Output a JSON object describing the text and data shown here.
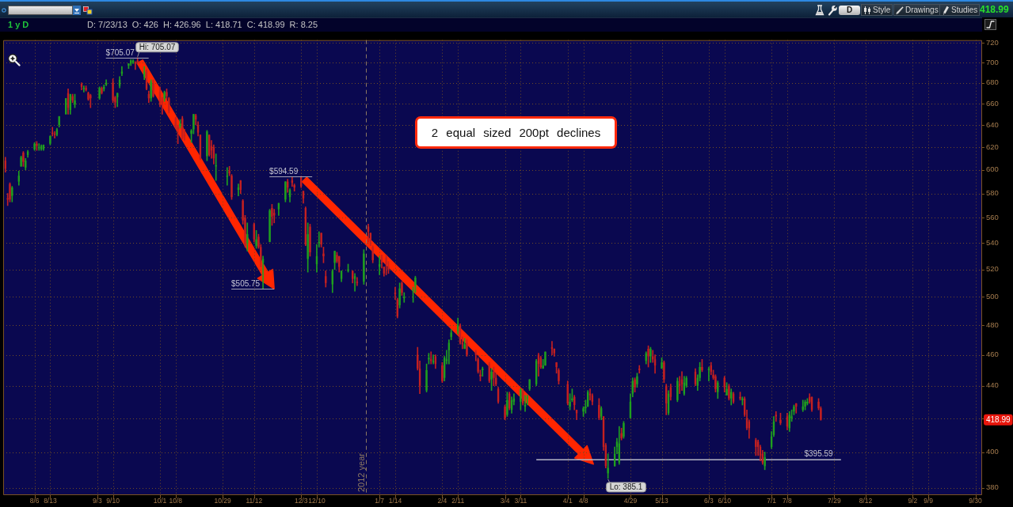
{
  "chart_data": {
    "type": "candlestick",
    "title": "1 y D",
    "subtitle": "D: 7/23/13  O: 426  H: 426.96  L: 418.71  C: 418.99  R: 8.25",
    "x": [
      "2012-07-24",
      "2012-07-25",
      "2012-07-26",
      "2012-07-27",
      "2012-07-30",
      "2012-07-31",
      "2012-08-01",
      "2012-08-02",
      "2012-08-03",
      "2012-08-06",
      "2012-08-07",
      "2012-08-08",
      "2012-08-09",
      "2012-08-10",
      "2012-08-13",
      "2012-08-14",
      "2012-08-15",
      "2012-08-16",
      "2012-08-17",
      "2012-08-20",
      "2012-08-21",
      "2012-08-22",
      "2012-08-23",
      "2012-08-24",
      "2012-08-27",
      "2012-08-28",
      "2012-08-29",
      "2012-08-30",
      "2012-08-31",
      "2012-09-04",
      "2012-09-05",
      "2012-09-06",
      "2012-09-07",
      "2012-09-10",
      "2012-09-11",
      "2012-09-12",
      "2012-09-13",
      "2012-09-14",
      "2012-09-17",
      "2012-09-18",
      "2012-09-19",
      "2012-09-20",
      "2012-09-21",
      "2012-09-24",
      "2012-09-25",
      "2012-09-26",
      "2012-09-27",
      "2012-09-28",
      "2012-10-01",
      "2012-10-02",
      "2012-10-03",
      "2012-10-04",
      "2012-10-05",
      "2012-10-08",
      "2012-10-09",
      "2012-10-10",
      "2012-10-11",
      "2012-10-12",
      "2012-10-15",
      "2012-10-16",
      "2012-10-17",
      "2012-10-18",
      "2012-10-19",
      "2012-10-22",
      "2012-10-23",
      "2012-10-24",
      "2012-10-25",
      "2012-10-26",
      "2012-10-31",
      "2012-11-01",
      "2012-11-02",
      "2012-11-05",
      "2012-11-06",
      "2012-11-07",
      "2012-11-08",
      "2012-11-09",
      "2012-11-12",
      "2012-11-13",
      "2012-11-14",
      "2012-11-15",
      "2012-11-16",
      "2012-11-19",
      "2012-11-20",
      "2012-11-21",
      "2012-11-23",
      "2012-11-26",
      "2012-11-27",
      "2012-11-28",
      "2012-11-29",
      "2012-11-30",
      "2012-12-03",
      "2012-12-04",
      "2012-12-05",
      "2012-12-06",
      "2012-12-07",
      "2012-12-10",
      "2012-12-11",
      "2012-12-12",
      "2012-12-13",
      "2012-12-14",
      "2012-12-17",
      "2012-12-18",
      "2012-12-19",
      "2012-12-20",
      "2012-12-21",
      "2012-12-24",
      "2012-12-26",
      "2012-12-27",
      "2012-12-28",
      "2012-12-31",
      "2013-01-02",
      "2013-01-03",
      "2013-01-04",
      "2013-01-07",
      "2013-01-08",
      "2013-01-09",
      "2013-01-10",
      "2013-01-11",
      "2013-01-14",
      "2013-01-15",
      "2013-01-16",
      "2013-01-17",
      "2013-01-18",
      "2013-01-22",
      "2013-01-23",
      "2013-01-24",
      "2013-01-25",
      "2013-01-28",
      "2013-01-29",
      "2013-01-30",
      "2013-01-31",
      "2013-02-01",
      "2013-02-04",
      "2013-02-05",
      "2013-02-06",
      "2013-02-07",
      "2013-02-08",
      "2013-02-11",
      "2013-02-12",
      "2013-02-13",
      "2013-02-14",
      "2013-02-15",
      "2013-02-19",
      "2013-02-20",
      "2013-02-21",
      "2013-02-22",
      "2013-02-25",
      "2013-02-26",
      "2013-02-27",
      "2013-02-28",
      "2013-03-01",
      "2013-03-04",
      "2013-03-05",
      "2013-03-06",
      "2013-03-07",
      "2013-03-08",
      "2013-03-11",
      "2013-03-12",
      "2013-03-13",
      "2013-03-14",
      "2013-03-15",
      "2013-03-18",
      "2013-03-19",
      "2013-03-20",
      "2013-03-21",
      "2013-03-22",
      "2013-03-25",
      "2013-03-26",
      "2013-03-27",
      "2013-03-28",
      "2013-04-01",
      "2013-04-02",
      "2013-04-03",
      "2013-04-04",
      "2013-04-05",
      "2013-04-08",
      "2013-04-09",
      "2013-04-10",
      "2013-04-11",
      "2013-04-12",
      "2013-04-15",
      "2013-04-16",
      "2013-04-17",
      "2013-04-18",
      "2013-04-19",
      "2013-04-22",
      "2013-04-23",
      "2013-04-24",
      "2013-04-25",
      "2013-04-26",
      "2013-04-29",
      "2013-04-30",
      "2013-05-01",
      "2013-05-02",
      "2013-05-03",
      "2013-05-06",
      "2013-05-07",
      "2013-05-08",
      "2013-05-09",
      "2013-05-10",
      "2013-05-13",
      "2013-05-14",
      "2013-05-15",
      "2013-05-16",
      "2013-05-17",
      "2013-05-20",
      "2013-05-21",
      "2013-05-22",
      "2013-05-23",
      "2013-05-24",
      "2013-05-28",
      "2013-05-29",
      "2013-05-30",
      "2013-05-31",
      "2013-06-03",
      "2013-06-04",
      "2013-06-05",
      "2013-06-06",
      "2013-06-07",
      "2013-06-10",
      "2013-06-11",
      "2013-06-12",
      "2013-06-13",
      "2013-06-14",
      "2013-06-17",
      "2013-06-18",
      "2013-06-19",
      "2013-06-20",
      "2013-06-21",
      "2013-06-24",
      "2013-06-25",
      "2013-06-26",
      "2013-06-27",
      "2013-06-28",
      "2013-07-01",
      "2013-07-02",
      "2013-07-03",
      "2013-07-05",
      "2013-07-08",
      "2013-07-09",
      "2013-07-10",
      "2013-07-11",
      "2013-07-12",
      "2013-07-15",
      "2013-07-16",
      "2013-07-17",
      "2013-07-18",
      "2013-07-19",
      "2013-07-22",
      "2013-07-23"
    ],
    "ohlc": [
      [
        608,
        611,
        598,
        601
      ],
      [
        576,
        580,
        570,
        575
      ],
      [
        588,
        589,
        573,
        575
      ],
      [
        578,
        586,
        573,
        585
      ],
      [
        590,
        599,
        587,
        595
      ],
      [
        603,
        612,
        603,
        611
      ],
      [
        615,
        616,
        603,
        607
      ],
      [
        602,
        610,
        600,
        608
      ],
      [
        613,
        617,
        611,
        616
      ],
      [
        618,
        624,
        617,
        623
      ],
      [
        623,
        625,
        617,
        621
      ],
      [
        619,
        623,
        617,
        620
      ],
      [
        618,
        622,
        617,
        621
      ],
      [
        618,
        622,
        617,
        622
      ],
      [
        623,
        630,
        622,
        630
      ],
      [
        633,
        638,
        630,
        632
      ],
      [
        632,
        634,
        628,
        631
      ],
      [
        631,
        637,
        630,
        636
      ],
      [
        640,
        648,
        638,
        648
      ],
      [
        650,
        665,
        650,
        665
      ],
      [
        670,
        674,
        650,
        656
      ],
      [
        654,
        669,
        650,
        669
      ],
      [
        667,
        669,
        661,
        663
      ],
      [
        659,
        669,
        656,
        663
      ],
      [
        679,
        680,
        673,
        676
      ],
      [
        674,
        677,
        671,
        675
      ],
      [
        675,
        677,
        672,
        673
      ],
      [
        670,
        671,
        663,
        664
      ],
      [
        668,
        669,
        656,
        665
      ],
      [
        665,
        676,
        664,
        675
      ],
      [
        675,
        676,
        669,
        670
      ],
      [
        674,
        678,
        672,
        676
      ],
      [
        678,
        683,
        677,
        680
      ],
      [
        680,
        684,
        661,
        663
      ],
      [
        666,
        667,
        656,
        661
      ],
      [
        666,
        670,
        657,
        670
      ],
      [
        677,
        686,
        675,
        683
      ],
      [
        689,
        696,
        687,
        691
      ],
      [
        697,
        699,
        694,
        699
      ],
      [
        699,
        703,
        697,
        702
      ],
      [
        700,
        703,
        699,
        702
      ],
      [
        700,
        701,
        693,
        699
      ],
      [
        702,
        705.07,
        699,
        700
      ],
      [
        686,
        696,
        683,
        691
      ],
      [
        692,
        693,
        673,
        674
      ],
      [
        669,
        672,
        661,
        665
      ],
      [
        665,
        683,
        662,
        681
      ],
      [
        679,
        683,
        666,
        667
      ],
      [
        671,
        676,
        657,
        659
      ],
      [
        662,
        666,
        650,
        661
      ],
      [
        665,
        672,
        662,
        671
      ],
      [
        671,
        674,
        664,
        667
      ],
      [
        665,
        666,
        651,
        653
      ],
      [
        646,
        647,
        637,
        638
      ],
      [
        638,
        640,
        623,
        636
      ],
      [
        639,
        645,
        637,
        641
      ],
      [
        646,
        648,
        627,
        628
      ],
      [
        631,
        636,
        626,
        630
      ],
      [
        632,
        636,
        624,
        635
      ],
      [
        636,
        650,
        632,
        650
      ],
      [
        649,
        650,
        640,
        645
      ],
      [
        640,
        643,
        630,
        633
      ],
      [
        631,
        631,
        609,
        610
      ],
      [
        612,
        635,
        608,
        634
      ],
      [
        631,
        631,
        612,
        613
      ],
      [
        621,
        626,
        610,
        617
      ],
      [
        620,
        622,
        605,
        610
      ],
      [
        603,
        614,
        591,
        604
      ],
      [
        594,
        602,
        587,
        595
      ],
      [
        599,
        603,
        595,
        597
      ],
      [
        595,
        596,
        575,
        577
      ],
      [
        583,
        588,
        578,
        585
      ],
      [
        591,
        591,
        580,
        583
      ],
      [
        574,
        575,
        555,
        558
      ],
      [
        560,
        562,
        537,
        538
      ],
      [
        540,
        556,
        534,
        547
      ],
      [
        555,
        556,
        541,
        543
      ],
      [
        538,
        550,
        536,
        543
      ],
      [
        545,
        547,
        536,
        537
      ],
      [
        537,
        539,
        522,
        526
      ],
      [
        525,
        530,
        505.75,
        528
      ],
      [
        541,
        567,
        541,
        566
      ],
      [
        568,
        571,
        554,
        561
      ],
      [
        564,
        567,
        556,
        562
      ],
      [
        567,
        572,
        562,
        572
      ],
      [
        575,
        590,
        573,
        590
      ],
      [
        590,
        592,
        581,
        585
      ],
      [
        577,
        584,
        573,
        583
      ],
      [
        591,
        594,
        586,
        589
      ],
      [
        587,
        588,
        582,
        585
      ],
      [
        594,
        594.59,
        585,
        586
      ],
      [
        582,
        582,
        572,
        576
      ],
      [
        568,
        569,
        538,
        539
      ],
      [
        528,
        556,
        518,
        547
      ],
      [
        553,
        555,
        530,
        533
      ],
      [
        524,
        539,
        518,
        530
      ],
      [
        540,
        549,
        537,
        541
      ],
      [
        548,
        548,
        537,
        539
      ],
      [
        532,
        537,
        525,
        530
      ],
      [
        515,
        519,
        507,
        510
      ],
      [
        509,
        520,
        503,
        519
      ],
      [
        525,
        534,
        520,
        534
      ],
      [
        531,
        533,
        525,
        526
      ],
      [
        530,
        530,
        518,
        522
      ],
      [
        513,
        519,
        511,
        519
      ],
      [
        519,
        524,
        518,
        520
      ],
      [
        519,
        519,
        510,
        513
      ],
      [
        513,
        517,
        504,
        515
      ],
      [
        511,
        514,
        508,
        510
      ],
      [
        511,
        535,
        509,
        532
      ],
      [
        553,
        555,
        541,
        549
      ],
      [
        548,
        548,
        538,
        542
      ],
      [
        537,
        538,
        525,
        527
      ],
      [
        522,
        530,
        516,
        524
      ],
      [
        529,
        531,
        521,
        525
      ],
      [
        522,
        522,
        515,
        517
      ],
      [
        529,
        531,
        516,
        524
      ],
      [
        522,
        526,
        517,
        520
      ],
      [
        503,
        507,
        498,
        502
      ],
      [
        498,
        499,
        485,
        486
      ],
      [
        494,
        510,
        492,
        506
      ],
      [
        510,
        511,
        501,
        503
      ],
      [
        499,
        503,
        496,
        500
      ],
      [
        504,
        507,
        496,
        505
      ],
      [
        508,
        515,
        503,
        514
      ],
      [
        460,
        465,
        450,
        451
      ],
      [
        451,
        456,
        435,
        440
      ],
      [
        437,
        454,
        436,
        450
      ],
      [
        457,
        461,
        454,
        458
      ],
      [
        457,
        462,
        454,
        456
      ],
      [
        455,
        460,
        454,
        456
      ],
      [
        459,
        460,
        451,
        454
      ],
      [
        453,
        455,
        442,
        443
      ],
      [
        445,
        459,
        443,
        458
      ],
      [
        456,
        463,
        454,
        457
      ],
      [
        463,
        470,
        454,
        468
      ],
      [
        472,
        477,
        470,
        475
      ],
      [
        476,
        485,
        474,
        480
      ],
      [
        480,
        481,
        467,
        468
      ],
      [
        468,
        472,
        464,
        467
      ],
      [
        464,
        471,
        464,
        467
      ],
      [
        468,
        470,
        459,
        460
      ],
      [
        462,
        463,
        456,
        460
      ],
      [
        457,
        458,
        448,
        449
      ],
      [
        447,
        450,
        443,
        446
      ],
      [
        450,
        452,
        446,
        451
      ],
      [
        454,
        455,
        442,
        443
      ],
      [
        444,
        451,
        437,
        449
      ],
      [
        449,
        452,
        440,
        445
      ],
      [
        445,
        448,
        440,
        441
      ],
      [
        438,
        439,
        429,
        430
      ],
      [
        427,
        428,
        419,
        420
      ],
      [
        422,
        436,
        421,
        431
      ],
      [
        435,
        436,
        425,
        426
      ],
      [
        425,
        433,
        423,
        431
      ],
      [
        430,
        435,
        428,
        432
      ],
      [
        430,
        438,
        425,
        438
      ],
      [
        436,
        438,
        428,
        429
      ],
      [
        427,
        434,
        424,
        428
      ],
      [
        432,
        434,
        428,
        433
      ],
      [
        438,
        444,
        437,
        444
      ],
      [
        441,
        457,
        440,
        456
      ],
      [
        460,
        461,
        446,
        454
      ],
      [
        458,
        459,
        451,
        452
      ],
      [
        451,
        457,
        451,
        453
      ],
      [
        453,
        462,
        453,
        462
      ],
      [
        465,
        469,
        460,
        464
      ],
      [
        464,
        464,
        459,
        461
      ],
      [
        455,
        455,
        448,
        452
      ],
      [
        450,
        451,
        441,
        443
      ],
      [
        441,
        443,
        428,
        429
      ],
      [
        427,
        435,
        425,
        430
      ],
      [
        431,
        438,
        430,
        432
      ],
      [
        433,
        434,
        425,
        428
      ],
      [
        425,
        425,
        419,
        423
      ],
      [
        424,
        427,
        421,
        426
      ],
      [
        426,
        431,
        423,
        427
      ],
      [
        427,
        437,
        427,
        436
      ],
      [
        435,
        438,
        431,
        434
      ],
      [
        434,
        435,
        428,
        430
      ],
      [
        428,
        432,
        419,
        420
      ],
      [
        421,
        427,
        419,
        426
      ],
      [
        421,
        421,
        401,
        403
      ],
      [
        404,
        405,
        391,
        392
      ],
      [
        388,
        399,
        385.1,
        391
      ],
      [
        392,
        403,
        392,
        399
      ],
      [
        403,
        408,
        399,
        406
      ],
      [
        394,
        415,
        393,
        405
      ],
      [
        411,
        414,
        407,
        408
      ],
      [
        409,
        418,
        408,
        417
      ],
      [
        420,
        435,
        420,
        430
      ],
      [
        435,
        445,
        433,
        443
      ],
      [
        444,
        445,
        436,
        439
      ],
      [
        441,
        448,
        439,
        446
      ],
      [
        451,
        453,
        448,
        450
      ],
      [
        456,
        462,
        454,
        461
      ],
      [
        464,
        466,
        452,
        459
      ],
      [
        459,
        465,
        455,
        464
      ],
      [
        459,
        463,
        455,
        457
      ],
      [
        457,
        460,
        448,
        453
      ],
      [
        451,
        458,
        451,
        455
      ],
      [
        455,
        456,
        442,
        444
      ],
      [
        440,
        441,
        422,
        429
      ],
      [
        423,
        437,
        422,
        435
      ],
      [
        439,
        441,
        431,
        433
      ],
      [
        431,
        445,
        430,
        443
      ],
      [
        441,
        446,
        435,
        440
      ],
      [
        444,
        449,
        437,
        441
      ],
      [
        435,
        446,
        434,
        442
      ],
      [
        440,
        446,
        439,
        445
      ],
      [
        449,
        451,
        440,
        441
      ],
      [
        440,
        447,
        437,
        445
      ],
      [
        445,
        455,
        443,
        452
      ],
      [
        452,
        457,
        449,
        450
      ],
      [
        450,
        452,
        443,
        451
      ],
      [
        453,
        455,
        447,
        449
      ],
      [
        447,
        450,
        444,
        445
      ],
      [
        446,
        447,
        436,
        438
      ],
      [
        436,
        443,
        432,
        442
      ],
      [
        445,
        446,
        436,
        439
      ],
      [
        434,
        442,
        434,
        438
      ],
      [
        440,
        441,
        431,
        432
      ],
      [
        432,
        438,
        428,
        436
      ],
      [
        435,
        436,
        429,
        430
      ],
      [
        433,
        436,
        431,
        432
      ],
      [
        431,
        433,
        428,
        432
      ],
      [
        432,
        433,
        421,
        422
      ],
      [
        420,
        425,
        413,
        414
      ],
      [
        418,
        419,
        408,
        414
      ],
      [
        407,
        408,
        398,
        403
      ],
      [
        406,
        407,
        398,
        403
      ],
      [
        403,
        404,
        395,
        398
      ],
      [
        399,
        401,
        393,
        394
      ],
      [
        392,
        400,
        390,
        397
      ],
      [
        403,
        412,
        402,
        409
      ],
      [
        410,
        421,
        409,
        418
      ],
      [
        422,
        424,
        418,
        421
      ],
      [
        419,
        423,
        416,
        417
      ],
      [
        421,
        423,
        413,
        415
      ],
      [
        414,
        424,
        412,
        422
      ],
      [
        420,
        425,
        418,
        421
      ],
      [
        424,
        428,
        422,
        427
      ],
      [
        429,
        429,
        423,
        427
      ],
      [
        425,
        431,
        424,
        427
      ],
      [
        427,
        431,
        425,
        430
      ],
      [
        429,
        432,
        428,
        430
      ],
      [
        433,
        435,
        429,
        430
      ],
      [
        433,
        433,
        424,
        425
      ],
      [
        430,
        432,
        425,
        426
      ],
      [
        426,
        426.96,
        418.71,
        418.99
      ]
    ],
    "colors": [
      "#c42020",
      "#c42020",
      "#c42020",
      "#1f9f1f",
      "#1f9f1f",
      "#1f9f1f",
      "#c42020",
      "#1f9f1f",
      "#1f9f1f",
      "#1f9f1f",
      "#c42020",
      "#1f9f1f",
      "#1f9f1f",
      "#1f9f1f",
      "#1f9f1f",
      "#c42020",
      "#c42020",
      "#1f9f1f",
      "#1f9f1f",
      "#1f9f1f",
      "#c42020",
      "#1f9f1f",
      "#c42020",
      "#1f9f1f",
      "#c42020",
      "#1f9f1f",
      "#c42020",
      "#c42020",
      "#c42020",
      "#1f9f1f",
      "#c42020",
      "#1f9f1f",
      "#1f9f1f",
      "#c42020",
      "#c42020",
      "#1f9f1f",
      "#1f9f1f",
      "#1f9f1f",
      "#1f9f1f",
      "#1f9f1f",
      "#1f9f1f",
      "#c42020",
      "#c42020",
      "#1f9f1f",
      "#c42020",
      "#c42020",
      "#1f9f1f",
      "#c42020",
      "#c42020",
      "#c42020",
      "#1f9f1f",
      "#c42020",
      "#c42020",
      "#c42020",
      "#c42020",
      "#1f9f1f",
      "#c42020",
      "#c42020",
      "#1f9f1f",
      "#1f9f1f",
      "#c42020",
      "#c42020",
      "#c42020",
      "#1f9f1f",
      "#c42020",
      "#c42020",
      "#c42020",
      "#1f9f1f",
      "#1f9f1f",
      "#c42020",
      "#c42020",
      "#1f9f1f",
      "#c42020",
      "#c42020",
      "#c42020",
      "#1f9f1f",
      "#c42020",
      "#1f9f1f",
      "#c42020",
      "#c42020",
      "#1f9f1f",
      "#1f9f1f",
      "#c42020",
      "#c42020",
      "#1f9f1f",
      "#1f9f1f",
      "#c42020",
      "#1f9f1f",
      "#c42020",
      "#c42020",
      "#c42020",
      "#c42020",
      "#c42020",
      "#1f9f1f",
      "#c42020",
      "#1f9f1f",
      "#1f9f1f",
      "#c42020",
      "#c42020",
      "#c42020",
      "#1f9f1f",
      "#1f9f1f",
      "#c42020",
      "#c42020",
      "#1f9f1f",
      "#1f9f1f",
      "#c42020",
      "#1f9f1f",
      "#c42020",
      "#1f9f1f",
      "#c42020",
      "#c42020",
      "#c42020",
      "#1f9f1f",
      "#c42020",
      "#c42020",
      "#c42020",
      "#c42020",
      "#c42020",
      "#c42020",
      "#1f9f1f",
      "#c42020",
      "#1f9f1f",
      "#1f9f1f",
      "#1f9f1f",
      "#c42020",
      "#c42020",
      "#1f9f1f",
      "#1f9f1f",
      "#c42020",
      "#1f9f1f",
      "#c42020",
      "#c42020",
      "#1f9f1f",
      "#1f9f1f",
      "#1f9f1f",
      "#1f9f1f",
      "#1f9f1f",
      "#c42020",
      "#c42020",
      "#1f9f1f",
      "#c42020",
      "#c42020",
      "#c42020",
      "#c42020",
      "#1f9f1f",
      "#c42020",
      "#1f9f1f",
      "#c42020",
      "#c42020",
      "#c42020",
      "#c42020",
      "#1f9f1f",
      "#c42020",
      "#1f9f1f",
      "#1f9f1f",
      "#1f9f1f",
      "#c42020",
      "#1f9f1f",
      "#1f9f1f",
      "#1f9f1f",
      "#1f9f1f",
      "#c42020",
      "#c42020",
      "#1f9f1f",
      "#1f9f1f",
      "#c42020",
      "#c42020",
      "#c42020",
      "#c42020",
      "#c42020",
      "#1f9f1f",
      "#1f9f1f",
      "#c42020",
      "#c42020",
      "#1f9f1f",
      "#1f9f1f",
      "#1f9f1f",
      "#c42020",
      "#c42020",
      "#c42020",
      "#1f9f1f",
      "#c42020",
      "#c42020",
      "#1f9f1f",
      "#1f9f1f",
      "#1f9f1f",
      "#1f9f1f",
      "#c42020",
      "#1f9f1f",
      "#1f9f1f",
      "#1f9f1f",
      "#c42020",
      "#1f9f1f",
      "#c42020",
      "#1f9f1f",
      "#c42020",
      "#1f9f1f",
      "#c42020",
      "#c42020",
      "#1f9f1f",
      "#c42020",
      "#c42020",
      "#1f9f1f",
      "#c42020",
      "#1f9f1f",
      "#c42020",
      "#c42020",
      "#1f9f1f",
      "#1f9f1f",
      "#c42020",
      "#1f9f1f",
      "#1f9f1f",
      "#c42020",
      "#1f9f1f",
      "#c42020",
      "#c42020",
      "#c42020",
      "#1f9f1f",
      "#c42020",
      "#1f9f1f",
      "#c42020",
      "#1f9f1f",
      "#c42020",
      "#c42020",
      "#1f9f1f",
      "#c42020",
      "#c42020",
      "#c42020",
      "#c42020",
      "#c42020",
      "#c42020",
      "#c42020",
      "#1f9f1f",
      "#1f9f1f",
      "#1f9f1f",
      "#c42020",
      "#c42020",
      "#c42020",
      "#1f9f1f",
      "#1f9f1f",
      "#1f9f1f",
      "#c42020",
      "#1f9f1f",
      "#1f9f1f",
      "#1f9f1f",
      "#c42020",
      "#c42020",
      "#c42020",
      "#c42020"
    ],
    "series": [
      {
        "type": "line",
        "x": [
          "2013-03-18",
          "2013-08-01"
        ],
        "values": [
          395.59,
          395.59
        ],
        "color": "#b4b4c4"
      }
    ],
    "xlim": [
      "2012-07-23",
      "2013-10-03"
    ],
    "xticks": [
      {
        "value": "2012-08-06",
        "label": "8/6"
      },
      {
        "value": "2012-08-13",
        "label": "8/13"
      },
      {
        "value": "2012-09-03",
        "label": "9/3"
      },
      {
        "value": "2012-09-10",
        "label": "9/10"
      },
      {
        "value": "2012-10-01",
        "label": "10/1"
      },
      {
        "value": "2012-10-08",
        "label": "10/8"
      },
      {
        "value": "2012-10-29",
        "label": "10/29"
      },
      {
        "value": "2012-11-12",
        "label": "11/12"
      },
      {
        "value": "2012-12-03",
        "label": "12/3"
      },
      {
        "value": "2012-12-10",
        "label": "12/10"
      },
      {
        "value": "2013-01-07",
        "label": "1/7"
      },
      {
        "value": "2013-01-14",
        "label": "1/14"
      },
      {
        "value": "2013-02-04",
        "label": "2/4"
      },
      {
        "value": "2013-02-11",
        "label": "2/11"
      },
      {
        "value": "2013-03-04",
        "label": "3/4"
      },
      {
        "value": "2013-03-11",
        "label": "3/11"
      },
      {
        "value": "2013-04-01",
        "label": "4/1"
      },
      {
        "value": "2013-04-08",
        "label": "4/8"
      },
      {
        "value": "2013-04-29",
        "label": "4/29"
      },
      {
        "value": "2013-05-13",
        "label": "5/13"
      },
      {
        "value": "2013-06-03",
        "label": "6/3"
      },
      {
        "value": "2013-06-10",
        "label": "6/10"
      },
      {
        "value": "2013-07-01",
        "label": "7/1"
      },
      {
        "value": "2013-07-08",
        "label": "7/8"
      },
      {
        "value": "2013-07-29",
        "label": "7/29"
      },
      {
        "value": "2013-08-12",
        "label": "8/12"
      },
      {
        "value": "2013-09-02",
        "label": "9/2"
      },
      {
        "value": "2013-09-09",
        "label": "9/9"
      },
      {
        "value": "2013-09-30",
        "label": "9/30"
      }
    ],
    "ylim": [
      376,
      723
    ],
    "yticks": [
      380,
      400,
      {
        "value": 420,
        "label": null
      },
      440,
      460,
      480,
      500,
      520,
      540,
      560,
      580,
      600,
      620,
      640,
      660,
      680,
      700,
      720
    ],
    "log": true,
    "grid": true,
    "ref_lines": [
      {
        "axis": "x",
        "value": "2013-01-01",
        "label": "2012 year",
        "line_style": "dashed",
        "color": "#8c7862"
      }
    ],
    "annotations": [
      {
        "text": "Hi: 705.07",
        "x": "2012-09-21",
        "y": 705.07
      },
      {
        "text": "$705.07",
        "x": "2012-09-21",
        "y": 705.07
      },
      {
        "text": "$594.59",
        "x": "2012-12-03",
        "y": 594.59
      },
      {
        "text": "$505.75",
        "x": "2012-11-16",
        "y": 505.75
      },
      {
        "text": "Lo: 385.1",
        "x": "2013-04-19",
        "y": 385.1
      },
      {
        "text": "$395.59",
        "x": "2013-07-22",
        "y": 395.59
      },
      {
        "text": "418.99",
        "y": 418.99
      },
      "2 equal sized 200pt declines",
      "D",
      "Style",
      "Drawings",
      "Studies",
      "418.99"
    ]
  }
}
